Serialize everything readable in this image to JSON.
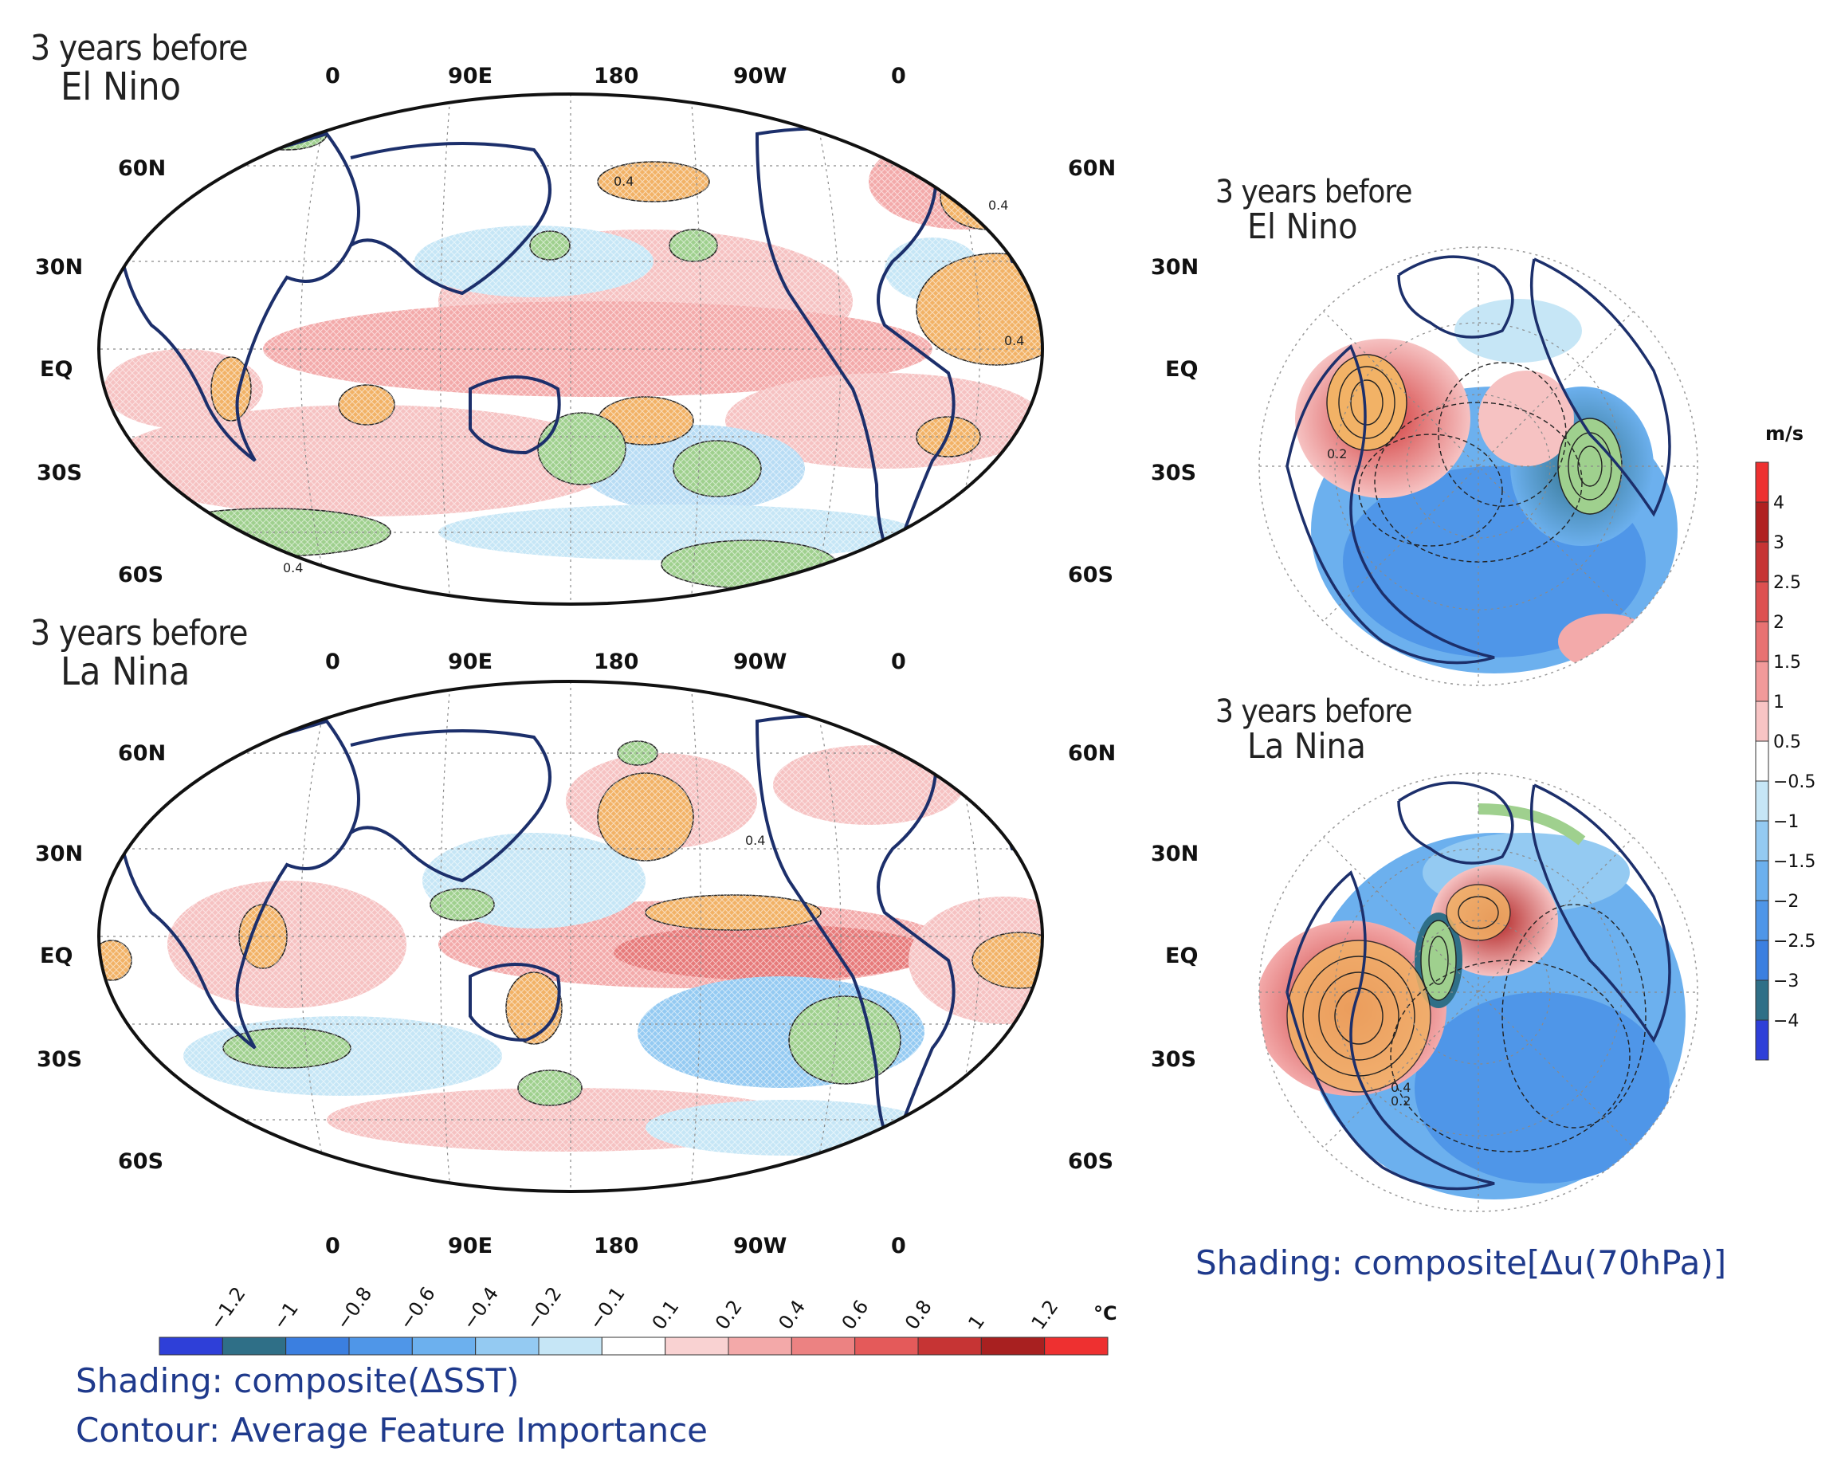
{
  "panels": {
    "sst_el_nino": {
      "title_line1": "3 years before",
      "title_line2": "El Nino",
      "contour_label": "0.4"
    },
    "sst_la_nina": {
      "title_line1": "3 years before",
      "title_line2": "La Nina",
      "contour_label": "0.4"
    },
    "u70_el_nino": {
      "title_line1": "3 years before",
      "title_line2": "El Nino",
      "contour_label": "0.2"
    },
    "u70_la_nina": {
      "title_line1": "3 years before",
      "title_line2": "La Nina",
      "contour_label_a": "0.4",
      "contour_label_b": "0.2"
    }
  },
  "map_axes": {
    "longitudes": [
      "0",
      "90E",
      "180",
      "90W",
      "0"
    ],
    "latitudes": [
      "60N",
      "30N",
      "EQ",
      "30S",
      "60S"
    ]
  },
  "sst_colorbar": {
    "unit": "°C",
    "ticks": [
      "−1.2",
      "−1",
      "−0.8",
      "−0.6",
      "−0.4",
      "−0.2",
      "−0.1",
      "0.1",
      "0.2",
      "0.4",
      "0.6",
      "0.8",
      "1",
      "1.2"
    ],
    "colors": [
      "#2e3fd8",
      "#2f6f87",
      "#3b7fe0",
      "#4f96e8",
      "#6cb0ee",
      "#94caf2",
      "#c6e6f6",
      "#ffffff",
      "#f9d2d2",
      "#f3a9a9",
      "#ec8282",
      "#e45a5a",
      "#c63434",
      "#a82020",
      "#ee3030"
    ]
  },
  "u_colorbar": {
    "unit": "m/s",
    "ticks": [
      "4",
      "3",
      "2.5",
      "2",
      "1.5",
      "1",
      "0.5",
      "−0.5",
      "−1",
      "−1.5",
      "−2",
      "−2.5",
      "−3",
      "−4"
    ],
    "colors": [
      "#ee3030",
      "#b02020",
      "#c63434",
      "#dd5050",
      "#e87272",
      "#f29a9a",
      "#f8c4c4",
      "#ffffff",
      "#c6e6f6",
      "#94caf2",
      "#6cb0ee",
      "#4f96e8",
      "#3b7fe0",
      "#2f6f87",
      "#2e3fd8"
    ]
  },
  "captions": {
    "sst_shading": "Shading: composite(ΔSST)",
    "sst_contour": "Contour: Average Feature Importance",
    "u_shading": "Shading: composite[Δu(70hPa)]"
  }
}
